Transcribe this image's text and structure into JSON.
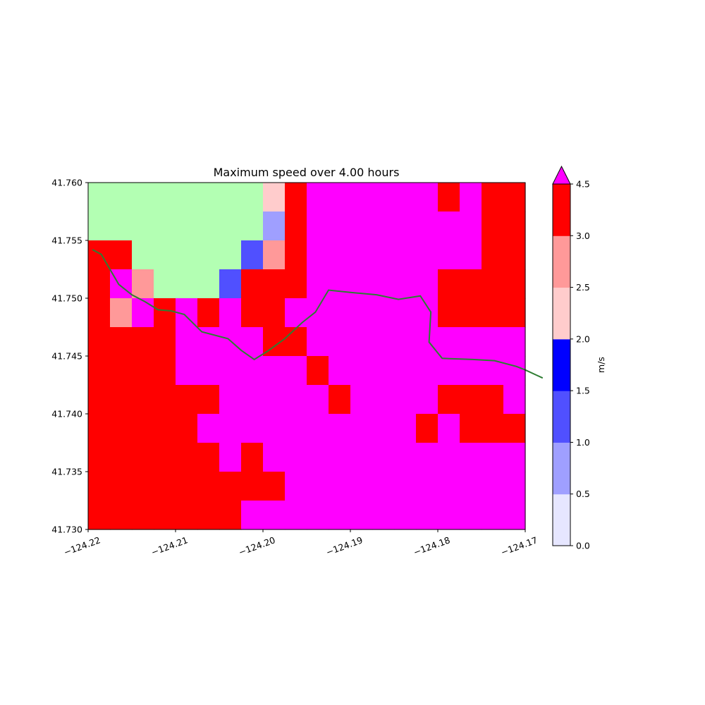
{
  "chart_data": {
    "type": "heatmap",
    "title": "Maximum speed over 4.00 hours",
    "xlabel": "",
    "ylabel": "",
    "xlim": [
      -124.22,
      -124.17
    ],
    "ylim": [
      41.73,
      41.76
    ],
    "x_ticks": [
      "−124.22",
      "−124.21",
      "−124.20",
      "−124.19",
      "−124.18",
      "−124.17"
    ],
    "x_tick_values": [
      -124.22,
      -124.21,
      -124.2,
      -124.19,
      -124.18,
      -124.17
    ],
    "y_ticks": [
      "41.730",
      "41.735",
      "41.740",
      "41.745",
      "41.750",
      "41.755",
      "41.760"
    ],
    "y_tick_values": [
      41.73,
      41.735,
      41.74,
      41.745,
      41.75,
      41.755,
      41.76
    ],
    "grid": false,
    "legend": "none",
    "grid_cells": {
      "cols": 20,
      "rows": 12,
      "row_order": "top-to-bottom",
      "legend_of_codes": {
        "L": "land (light green)",
        "P": "above 4.5 m/s",
        "R": "3.0-4.5",
        "S": "2.5-3.0",
        "T": "2.0-2.5",
        "U": "1.5-2.0",
        "V": "1.0-1.5",
        "W": "0.5-1.0",
        "X": "0.0-0.5"
      },
      "rows_data": [
        "LLLLLLLLTRPPPPPPRPRR",
        "LLLLLLLLWRPPPPPPPPRR",
        "RRLLLLLVSRPPPPPPPPRR",
        "RPSLLLVRRRPPPPPPRRRR",
        "RSPRPRPRRPPPPPPPRRRR",
        "RRRRPPPPRRPPPPPPPPPP",
        "RRRRPPPPPPRPPPPPPPPP",
        "RRRRRRPPPPPRPPPPRRRP",
        "RRRRRPPPPPPPPPPRPRRR",
        "RRRRRRPRPPPPPPPPPPPP",
        "RRRRRRRRRPPPPPPPPPPP",
        "RRRRRRRPPPPPPPPPPPPP"
      ]
    },
    "colors": {
      "L": "#b3ffb3",
      "P": "#ff00ff",
      "R": "#ff0000",
      "S": "#ff9999",
      "T": "#ffcccc",
      "U": "#0000ff",
      "V": "#5050ff",
      "W": "#9f9fff",
      "X": "#e6e6ff"
    },
    "shoreline": {
      "color": "#2e7d32",
      "points": [
        [
          -124.2195,
          41.7542
        ],
        [
          -124.2185,
          41.7538
        ],
        [
          -124.2175,
          41.7525
        ],
        [
          -124.2165,
          41.7512
        ],
        [
          -124.215,
          41.7503
        ],
        [
          -124.2135,
          41.7497
        ],
        [
          -124.212,
          41.749
        ],
        [
          -124.2105,
          41.7489
        ],
        [
          -124.209,
          41.7486
        ],
        [
          -124.207,
          41.7471
        ],
        [
          -124.204,
          41.7465
        ],
        [
          -124.2025,
          41.7455
        ],
        [
          -124.201,
          41.7447
        ],
        [
          -124.1995,
          41.7454
        ],
        [
          -124.1975,
          41.7465
        ],
        [
          -124.1955,
          41.7479
        ],
        [
          -124.194,
          41.7488
        ],
        [
          -124.1925,
          41.7507
        ],
        [
          -124.19,
          41.7505
        ],
        [
          -124.187,
          41.7503
        ],
        [
          -124.1845,
          41.7499
        ],
        [
          -124.182,
          41.7502
        ],
        [
          -124.1808,
          41.7488
        ],
        [
          -124.181,
          41.7462
        ],
        [
          -124.1795,
          41.7448
        ],
        [
          -124.176,
          41.7447
        ],
        [
          -124.1735,
          41.7446
        ],
        [
          -124.171,
          41.7441
        ],
        [
          -124.17,
          41.7438
        ],
        [
          -124.168,
          41.7431
        ]
      ]
    },
    "colorbar": {
      "label": "m/s",
      "boundaries": [
        0.0,
        0.5,
        1.0,
        1.5,
        2.0,
        2.5,
        3.0,
        4.5
      ],
      "tick_labels": [
        "0.0",
        "0.5",
        "1.0",
        "1.5",
        "2.0",
        "2.5",
        "3.0",
        "4.5"
      ],
      "colors": [
        "#e6e6ff",
        "#9f9fff",
        "#5050ff",
        "#0000ff",
        "#ffcccc",
        "#ff9999",
        "#ff0000"
      ],
      "extend_color": "#ff00ff",
      "extend": "max"
    }
  }
}
